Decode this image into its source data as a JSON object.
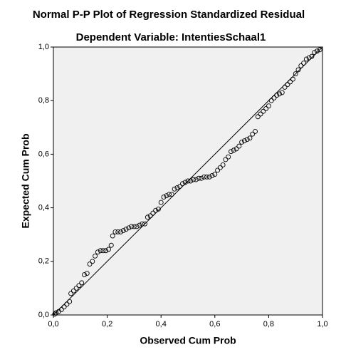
{
  "chart_data": {
    "type": "scatter",
    "title": "Normal P-P Plot of Regression Standardized Residual",
    "subtitle": "Dependent Variable: IntentiesSchaal1",
    "x_label": "Observed Cum Prob",
    "y_label": "Expected Cum Prob",
    "xlim": [
      0,
      1
    ],
    "ylim": [
      0,
      1
    ],
    "xticks": [
      {
        "value": 0,
        "label": "0,0"
      },
      {
        "value": 0.2,
        "label": "0,2"
      },
      {
        "value": 0.4,
        "label": "0,4"
      },
      {
        "value": 0.6,
        "label": "0,6"
      },
      {
        "value": 0.8,
        "label": "0,8"
      },
      {
        "value": 1,
        "label": "1,0"
      }
    ],
    "yticks": [
      {
        "value": 0,
        "label": "0,0"
      },
      {
        "value": 0.2,
        "label": "0,2"
      },
      {
        "value": 0.4,
        "label": "0,4"
      },
      {
        "value": 0.6,
        "label": "0,6"
      },
      {
        "value": 0.8,
        "label": "0,8"
      },
      {
        "value": 1,
        "label": "1,0"
      }
    ],
    "color": "#000000",
    "background": "#f0f0f0",
    "x": [
      0.005,
      0.01,
      0.02,
      0.03,
      0.04,
      0.05,
      0.06,
      0.065,
      0.075,
      0.085,
      0.095,
      0.105,
      0.115,
      0.125,
      0.135,
      0.145,
      0.155,
      0.165,
      0.175,
      0.185,
      0.195,
      0.205,
      0.215,
      0.22,
      0.23,
      0.24,
      0.25,
      0.26,
      0.27,
      0.28,
      0.29,
      0.3,
      0.31,
      0.32,
      0.33,
      0.34,
      0.35,
      0.36,
      0.37,
      0.38,
      0.39,
      0.4,
      0.41,
      0.42,
      0.43,
      0.44,
      0.45,
      0.46,
      0.47,
      0.48,
      0.49,
      0.5,
      0.51,
      0.52,
      0.53,
      0.54,
      0.55,
      0.56,
      0.57,
      0.58,
      0.59,
      0.6,
      0.61,
      0.62,
      0.63,
      0.64,
      0.65,
      0.66,
      0.67,
      0.68,
      0.69,
      0.7,
      0.71,
      0.72,
      0.73,
      0.74,
      0.75,
      0.76,
      0.77,
      0.78,
      0.79,
      0.8,
      0.81,
      0.82,
      0.83,
      0.84,
      0.85,
      0.86,
      0.87,
      0.88,
      0.89,
      0.9,
      0.91,
      0.92,
      0.93,
      0.94,
      0.95,
      0.96,
      0.97,
      0.98,
      0.99
    ],
    "values": [
      0.003,
      0.008,
      0.013,
      0.02,
      0.03,
      0.04,
      0.05,
      0.08,
      0.09,
      0.1,
      0.11,
      0.12,
      0.15,
      0.155,
      0.19,
      0.2,
      0.22,
      0.235,
      0.24,
      0.24,
      0.24,
      0.245,
      0.26,
      0.295,
      0.31,
      0.31,
      0.31,
      0.315,
      0.32,
      0.325,
      0.33,
      0.33,
      0.33,
      0.335,
      0.34,
      0.34,
      0.365,
      0.37,
      0.38,
      0.39,
      0.395,
      0.42,
      0.44,
      0.445,
      0.45,
      0.45,
      0.47,
      0.475,
      0.48,
      0.49,
      0.495,
      0.5,
      0.5,
      0.505,
      0.505,
      0.51,
      0.51,
      0.515,
      0.515,
      0.515,
      0.52,
      0.525,
      0.54,
      0.55,
      0.56,
      0.58,
      0.59,
      0.61,
      0.615,
      0.62,
      0.63,
      0.645,
      0.65,
      0.655,
      0.66,
      0.675,
      0.685,
      0.74,
      0.75,
      0.76,
      0.77,
      0.78,
      0.8,
      0.81,
      0.82,
      0.825,
      0.83,
      0.85,
      0.86,
      0.87,
      0.88,
      0.9,
      0.915,
      0.93,
      0.94,
      0.955,
      0.96,
      0.965,
      0.98,
      0.985,
      0.99
    ]
  }
}
